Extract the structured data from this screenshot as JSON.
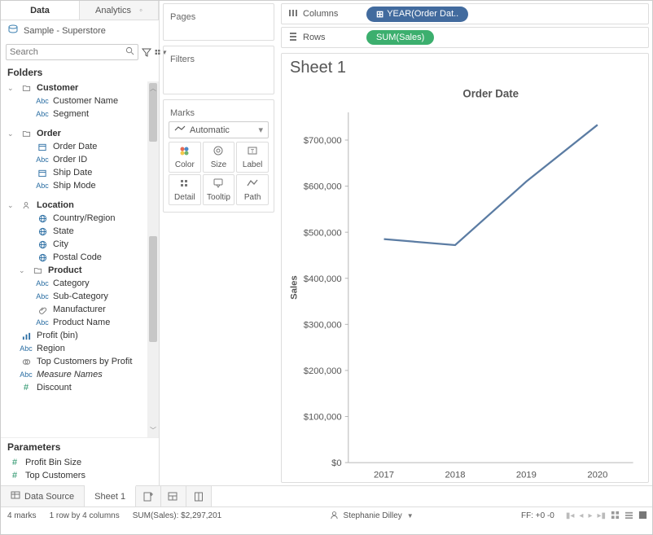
{
  "tabs": {
    "data": "Data",
    "analytics": "Analytics"
  },
  "datasource": "Sample - Superstore",
  "search_placeholder": "Search",
  "folders_label": "Folders",
  "tree": {
    "customer": {
      "name": "Customer",
      "items": [
        {
          "icon": "Abc",
          "label": "Customer Name"
        },
        {
          "icon": "Abc",
          "label": "Segment"
        }
      ]
    },
    "order": {
      "name": "Order",
      "items": [
        {
          "icon": "date",
          "label": "Order Date"
        },
        {
          "icon": "Abc",
          "label": "Order ID"
        },
        {
          "icon": "date",
          "label": "Ship Date"
        },
        {
          "icon": "Abc",
          "label": "Ship Mode"
        }
      ]
    },
    "location": {
      "name": "Location",
      "items": [
        {
          "icon": "globe",
          "label": "Country/Region"
        },
        {
          "icon": "globe",
          "label": "State"
        },
        {
          "icon": "globe",
          "label": "City"
        },
        {
          "icon": "globe",
          "label": "Postal Code"
        }
      ]
    },
    "product": {
      "name": "Product",
      "items": [
        {
          "icon": "Abc",
          "label": "Category"
        },
        {
          "icon": "Abc",
          "label": "Sub-Category"
        },
        {
          "icon": "clip",
          "label": "Manufacturer"
        },
        {
          "icon": "Abc",
          "label": "Product Name"
        }
      ]
    },
    "loose": [
      {
        "icon": "bars",
        "label": "Profit (bin)"
      },
      {
        "icon": "Abc",
        "label": "Region"
      },
      {
        "icon": "set",
        "label": "Top Customers by Profit"
      },
      {
        "icon": "Abc",
        "label": "Measure Names",
        "italic": true
      },
      {
        "icon": "hash",
        "label": "Discount",
        "faded": true
      }
    ]
  },
  "parameters_label": "Parameters",
  "parameters": [
    {
      "icon": "hash",
      "label": "Profit Bin Size"
    },
    {
      "icon": "hash",
      "label": "Top Customers"
    }
  ],
  "cards": {
    "pages": "Pages",
    "filters": "Filters",
    "marks": "Marks",
    "mark_type": "Automatic",
    "cells": [
      "Color",
      "Size",
      "Label",
      "Detail",
      "Tooltip",
      "Path"
    ]
  },
  "shelves": {
    "columns_label": "Columns",
    "rows_label": "Rows",
    "columns_pill": "YEAR(Order Dat..",
    "rows_pill": "SUM(Sales)"
  },
  "sheet_title": "Sheet 1",
  "chart": {
    "title": "Order Date",
    "y_axis_label": "Sales",
    "x_labels": [
      "2017",
      "2018",
      "2019",
      "2020"
    ],
    "y_ticks": [
      0,
      100000,
      200000,
      300000,
      400000,
      500000,
      600000,
      700000
    ],
    "y_tick_labels": [
      "$0",
      "$100,000",
      "$200,000",
      "$300,000",
      "$400,000",
      "$500,000",
      "$600,000",
      "$700,000"
    ],
    "y_min": 0,
    "y_max": 760000,
    "values": [
      485000,
      472000,
      610000,
      733000
    ],
    "line_color": "#5b7ca3",
    "line_width": 2.2,
    "axis_color": "#b7b7b7",
    "tick_font_size": 11,
    "title_font_size": 13,
    "title_color": "#555555",
    "background": "#ffffff"
  },
  "bottom_tabs": {
    "data_source": "Data Source",
    "sheet1": "Sheet 1"
  },
  "status": {
    "marks": "4 marks",
    "rows_cols": "1 row by 4 columns",
    "sum": "SUM(Sales): $2,297,201",
    "user": "Stephanie Dilley",
    "ff": "FF: +0 -0"
  },
  "colors": {
    "pill_blue": "#426b9e",
    "pill_green": "#3caf6e"
  }
}
